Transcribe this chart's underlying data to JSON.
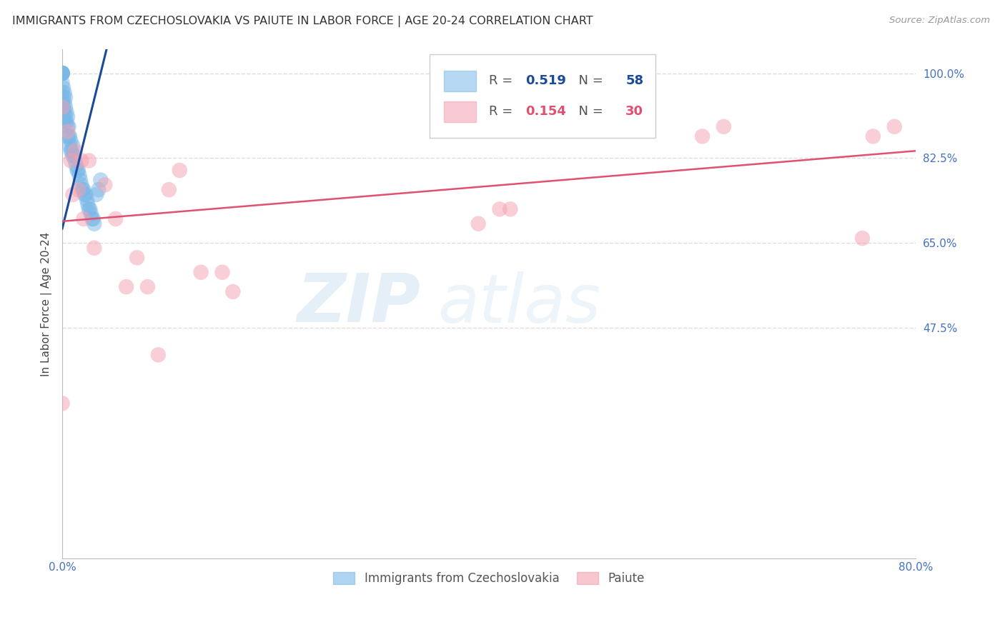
{
  "title": "IMMIGRANTS FROM CZECHOSLOVAKIA VS PAIUTE IN LABOR FORCE | AGE 20-24 CORRELATION CHART",
  "source": "Source: ZipAtlas.com",
  "ylabel": "In Labor Force | Age 20-24",
  "x_min": 0.0,
  "x_max": 0.8,
  "y_min": 0.0,
  "y_max": 1.05,
  "y_tick_labels_right": [
    "100.0%",
    "82.5%",
    "65.0%",
    "47.5%"
  ],
  "y_tick_values_right": [
    1.0,
    0.825,
    0.65,
    0.475
  ],
  "blue_R": 0.519,
  "blue_N": 58,
  "pink_R": 0.154,
  "pink_N": 30,
  "blue_color": "#7ab8e8",
  "pink_color": "#f4a0b0",
  "blue_line_color": "#1a4a9a",
  "pink_line_color": "#e05070",
  "legend_label_blue": "Immigrants from Czechoslovakia",
  "legend_label_pink": "Paiute",
  "watermark_zip": "ZIP",
  "watermark_atlas": "atlas",
  "grid_color": "#dddddd",
  "background_color": "#ffffff",
  "blue_scatter_x": [
    0.0,
    0.0,
    0.0,
    0.0,
    0.0,
    0.0,
    0.0,
    0.0,
    0.0,
    0.0,
    0.001,
    0.001,
    0.001,
    0.001,
    0.002,
    0.002,
    0.002,
    0.002,
    0.003,
    0.003,
    0.003,
    0.004,
    0.004,
    0.005,
    0.005,
    0.005,
    0.006,
    0.006,
    0.007,
    0.007,
    0.008,
    0.008,
    0.009,
    0.01,
    0.01,
    0.011,
    0.012,
    0.013,
    0.014,
    0.015,
    0.016,
    0.017,
    0.018,
    0.019,
    0.02,
    0.021,
    0.022,
    0.023,
    0.024,
    0.025,
    0.026,
    0.027,
    0.028,
    0.029,
    0.03,
    0.032,
    0.034,
    0.036
  ],
  "blue_scatter_y": [
    1.0,
    1.0,
    1.0,
    1.0,
    1.0,
    1.0,
    0.98,
    0.96,
    0.94,
    0.92,
    0.97,
    0.95,
    0.93,
    0.91,
    0.96,
    0.94,
    0.92,
    0.9,
    0.95,
    0.93,
    0.91,
    0.92,
    0.9,
    0.91,
    0.89,
    0.87,
    0.89,
    0.87,
    0.87,
    0.85,
    0.86,
    0.84,
    0.84,
    0.85,
    0.83,
    0.83,
    0.82,
    0.81,
    0.8,
    0.8,
    0.79,
    0.78,
    0.77,
    0.76,
    0.76,
    0.75,
    0.75,
    0.74,
    0.73,
    0.72,
    0.72,
    0.71,
    0.7,
    0.7,
    0.69,
    0.75,
    0.76,
    0.78
  ],
  "pink_scatter_x": [
    0.0,
    0.0,
    0.005,
    0.008,
    0.01,
    0.012,
    0.015,
    0.018,
    0.02,
    0.025,
    0.03,
    0.04,
    0.05,
    0.06,
    0.07,
    0.08,
    0.09,
    0.1,
    0.11,
    0.13,
    0.15,
    0.16,
    0.39,
    0.41,
    0.42,
    0.6,
    0.62,
    0.75,
    0.76,
    0.78
  ],
  "pink_scatter_y": [
    0.32,
    0.93,
    0.88,
    0.82,
    0.75,
    0.84,
    0.76,
    0.82,
    0.7,
    0.82,
    0.64,
    0.77,
    0.7,
    0.56,
    0.62,
    0.56,
    0.42,
    0.76,
    0.8,
    0.59,
    0.59,
    0.55,
    0.69,
    0.72,
    0.72,
    0.87,
    0.89,
    0.66,
    0.87,
    0.89
  ],
  "blue_line_x0": 0.0,
  "blue_line_y0": 0.68,
  "blue_line_x1": 0.036,
  "blue_line_y1": 1.0,
  "pink_line_x0": 0.0,
  "pink_line_y0": 0.695,
  "pink_line_x1": 0.8,
  "pink_line_y1": 0.84
}
